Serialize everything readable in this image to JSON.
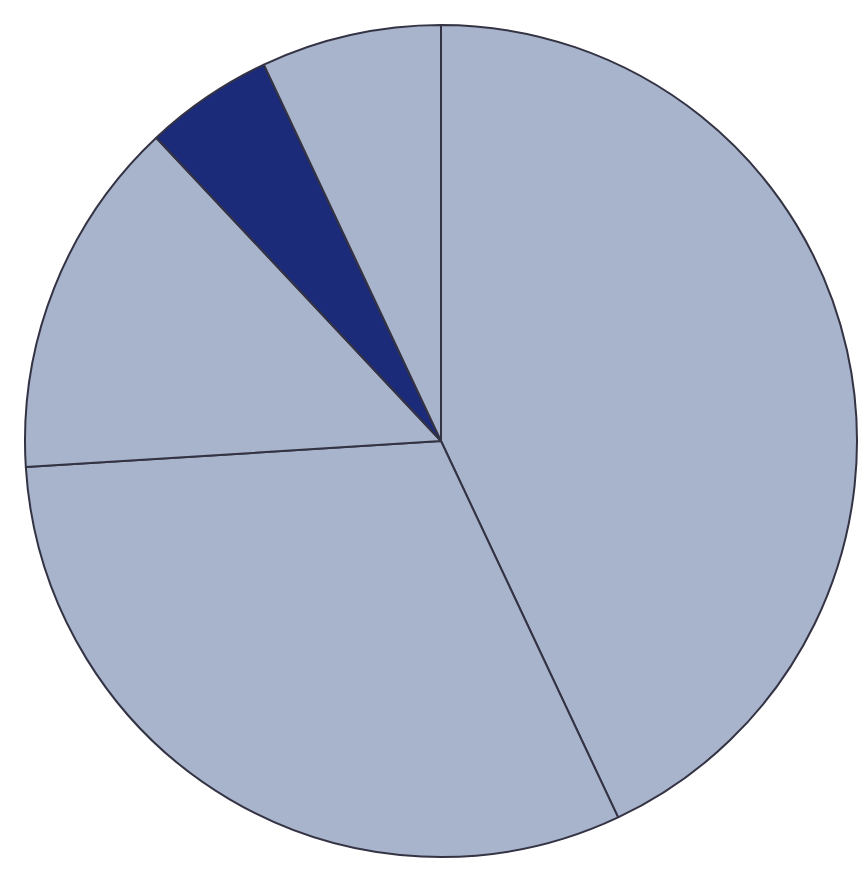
{
  "chart_data": {
    "type": "pie",
    "categories": [
      null,
      null,
      null,
      null,
      null
    ],
    "values": [
      43,
      31,
      14,
      5,
      7
    ],
    "colors": [
      "#a8b3cc",
      "#a8b3cc",
      "#a8b3cc",
      "#1c2a7a",
      "#a8b3cc"
    ],
    "legend": false
  }
}
